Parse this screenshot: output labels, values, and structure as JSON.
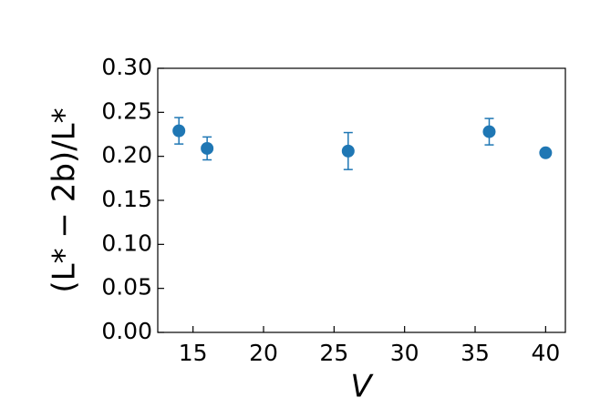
{
  "chart_data": {
    "type": "scatter",
    "x_label": "V",
    "y_label": "(L* − 2b)/L*",
    "series": [
      {
        "color": "#1f77b4",
        "x": [
          14,
          16,
          26,
          36,
          40
        ],
        "values": [
          0.229,
          0.209,
          0.206,
          0.228,
          0.204
        ],
        "errors": [
          0.015,
          0.013,
          0.021,
          0.015,
          0.003
        ]
      }
    ],
    "xlim": [
      12.5,
      41.4
    ],
    "ylim": [
      0,
      0.3
    ],
    "xticks": [
      15,
      20,
      25,
      30,
      35,
      40
    ],
    "yticks": [
      {
        "value": 0,
        "label": "0.00"
      },
      {
        "value": 0.05,
        "label": "0.05"
      },
      {
        "value": 0.1,
        "label": "0.10"
      },
      {
        "value": 0.15,
        "label": "0.15"
      },
      {
        "value": 0.2,
        "label": "0.20"
      },
      {
        "value": 0.25,
        "label": "0.25"
      },
      {
        "value": 0.3,
        "label": "0.30"
      }
    ]
  }
}
